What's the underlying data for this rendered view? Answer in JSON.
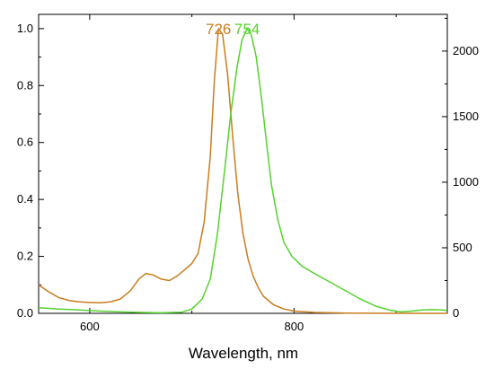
{
  "chart_data": {
    "type": "line",
    "title": "",
    "xlabel": "Wavelength, nm",
    "ylabel_left": "",
    "ylabel_right": "",
    "xlim": [
      550,
      950
    ],
    "ylim_left": [
      0,
      1.0
    ],
    "ylim_right": [
      0,
      2000
    ],
    "x_ticks": [
      "600",
      "800"
    ],
    "y_left_ticks": [
      "0.0",
      "0.2",
      "0.4",
      "0.6",
      "0.8",
      "1.0"
    ],
    "y_right_ticks": [
      "0",
      "500",
      "1000",
      "1500",
      "2000"
    ],
    "grid": false,
    "legend": "none",
    "annotations": [
      {
        "text": "726",
        "x": 726,
        "color": "#c87d1e"
      },
      {
        "text": "754",
        "x": 754,
        "color": "#55d22d"
      }
    ],
    "series": [
      {
        "color": "#c87d1e",
        "axis": "left",
        "points": [
          [
            550,
            0.1
          ],
          [
            560,
            0.075
          ],
          [
            570,
            0.055
          ],
          [
            580,
            0.045
          ],
          [
            590,
            0.04
          ],
          [
            600,
            0.038
          ],
          [
            610,
            0.037
          ],
          [
            620,
            0.04
          ],
          [
            630,
            0.05
          ],
          [
            640,
            0.08
          ],
          [
            648,
            0.12
          ],
          [
            655,
            0.14
          ],
          [
            662,
            0.135
          ],
          [
            670,
            0.12
          ],
          [
            678,
            0.115
          ],
          [
            685,
            0.13
          ],
          [
            692,
            0.15
          ],
          [
            700,
            0.175
          ],
          [
            706,
            0.21
          ],
          [
            712,
            0.32
          ],
          [
            718,
            0.55
          ],
          [
            722,
            0.82
          ],
          [
            726,
            1.0
          ],
          [
            730,
            0.98
          ],
          [
            735,
            0.84
          ],
          [
            740,
            0.62
          ],
          [
            745,
            0.42
          ],
          [
            750,
            0.28
          ],
          [
            755,
            0.19
          ],
          [
            760,
            0.13
          ],
          [
            765,
            0.09
          ],
          [
            770,
            0.06
          ],
          [
            780,
            0.03
          ],
          [
            790,
            0.015
          ],
          [
            800,
            0.008
          ],
          [
            820,
            0.003
          ],
          [
            850,
            0.001
          ],
          [
            900,
            0.0
          ],
          [
            950,
            0.0
          ]
        ]
      },
      {
        "color": "#55d22d",
        "axis": "left",
        "points": [
          [
            550,
            0.02
          ],
          [
            570,
            0.015
          ],
          [
            590,
            0.012
          ],
          [
            610,
            0.008
          ],
          [
            630,
            0.005
          ],
          [
            650,
            0.003
          ],
          [
            670,
            0.002
          ],
          [
            690,
            0.004
          ],
          [
            700,
            0.015
          ],
          [
            710,
            0.05
          ],
          [
            718,
            0.12
          ],
          [
            725,
            0.28
          ],
          [
            732,
            0.5
          ],
          [
            738,
            0.7
          ],
          [
            744,
            0.86
          ],
          [
            749,
            0.96
          ],
          [
            754,
            1.0
          ],
          [
            758,
            0.98
          ],
          [
            763,
            0.9
          ],
          [
            768,
            0.76
          ],
          [
            773,
            0.6
          ],
          [
            778,
            0.45
          ],
          [
            784,
            0.33
          ],
          [
            790,
            0.25
          ],
          [
            798,
            0.2
          ],
          [
            808,
            0.165
          ],
          [
            820,
            0.14
          ],
          [
            835,
            0.11
          ],
          [
            850,
            0.08
          ],
          [
            865,
            0.05
          ],
          [
            880,
            0.025
          ],
          [
            895,
            0.01
          ],
          [
            905,
            0.005
          ],
          [
            915,
            0.008
          ],
          [
            925,
            0.012
          ],
          [
            935,
            0.013
          ],
          [
            945,
            0.012
          ],
          [
            950,
            0.01
          ]
        ]
      }
    ]
  }
}
